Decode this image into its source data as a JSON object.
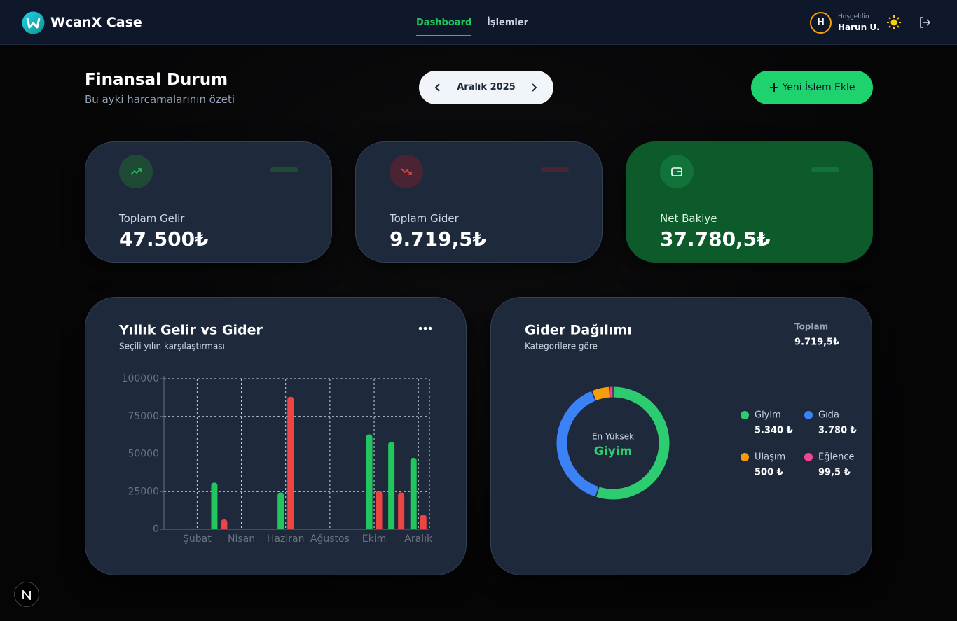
{
  "header": {
    "brand": "WcanX Case",
    "nav": [
      "Dashboard",
      "İşlemler"
    ],
    "avatar": "H",
    "greeting": "Hoşgeldin",
    "user": "Harun U."
  },
  "page": {
    "title": "Finansal Durum",
    "subtitle": "Bu ayki harcamalarının özeti",
    "period": "Aralık 2025",
    "add_button": "Yeni İşlem Ekle"
  },
  "cards": [
    {
      "label": "Toplam Gelir",
      "value": "47.500₺"
    },
    {
      "label": "Toplam Gider",
      "value": "9.719,5₺"
    },
    {
      "label": "Net Bakiye",
      "value": "37.780,5₺"
    }
  ],
  "chart_data": [
    {
      "type": "bar",
      "title": "Yıllık Gelir vs Gider",
      "subtitle": "Seçili yılın karşılaştırması",
      "categories": [
        null,
        "Şubat",
        null,
        "Nisan",
        null,
        "Haziran",
        null,
        "Ağustos",
        null,
        "Ekim",
        null,
        "Aralık"
      ],
      "series": [
        {
          "color": "#22c55e",
          "values": [
            0,
            0,
            31000,
            0,
            0,
            24500,
            0,
            0,
            0,
            63000,
            58000,
            47500
          ]
        },
        {
          "color": "#ef4444",
          "values": [
            0,
            0,
            6500,
            0,
            0,
            88000,
            0,
            0,
            0,
            25500,
            24500,
            9719.5
          ]
        }
      ],
      "ylim": [
        0,
        100000
      ],
      "yticks": [
        0,
        25000,
        50000,
        75000,
        100000
      ],
      "grid": true
    },
    {
      "type": "pie",
      "title": "Gider Dağılımı",
      "subtitle": "Kategorilere göre",
      "total_label": "Toplam",
      "total": "9.719,5₺",
      "center_label": "En Yüksek",
      "categories": [
        "Giyim",
        "Gıda",
        "Ulaşım",
        "Eğlence"
      ],
      "values": [
        5340,
        3780,
        500,
        99.5
      ],
      "value_labels": [
        "5.340 ₺",
        "3.780 ₺",
        "500 ₺",
        "99,5 ₺"
      ],
      "colors": [
        "#2ecc71",
        "#3b82f6",
        "#f59e0b",
        "#ec4899"
      ]
    }
  ]
}
